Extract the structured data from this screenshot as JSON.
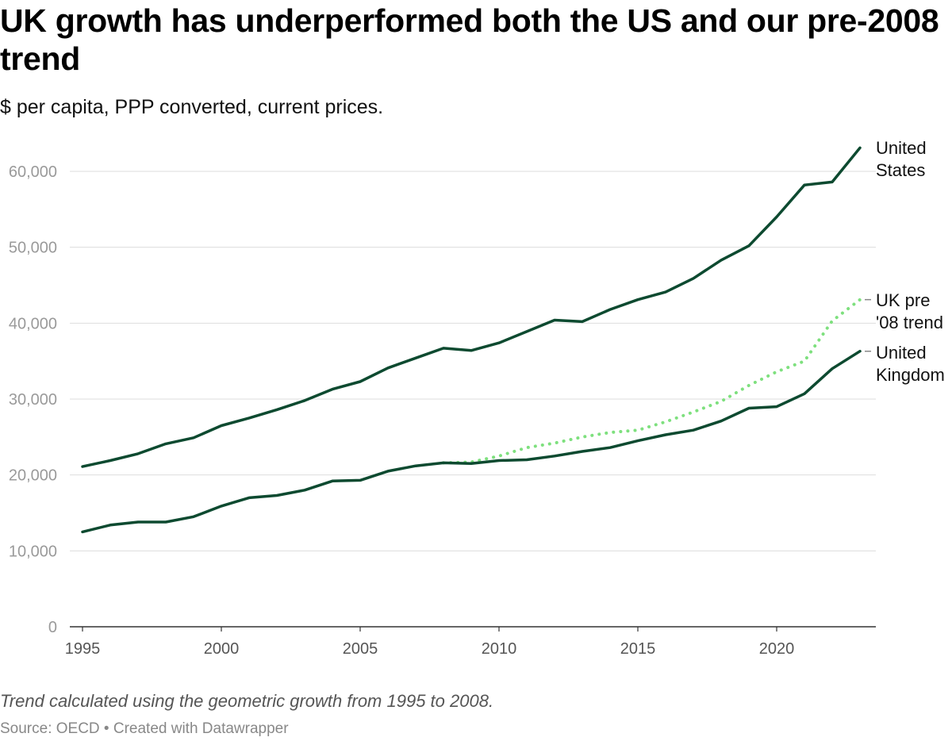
{
  "title": "UK growth has underperformed both the US and our pre-2008 trend",
  "subtitle": "$ per capita, PPP converted, current prices.",
  "note": "Trend calculated using the geometric growth from 1995 to 2008.",
  "source": "Source: OECD • Created with Datawrapper",
  "colors": {
    "us": "#0d4a30",
    "uk": "#0d4a30",
    "trend": "#7ee07e",
    "grid": "#dddddd",
    "axis": "#333333"
  },
  "chart_data": {
    "type": "line",
    "title": "UK growth has underperformed both the US and our pre-2008 trend",
    "xlabel": "",
    "ylabel": "$ per capita, PPP converted, current prices.",
    "xlim": [
      1995,
      2023
    ],
    "ylim": [
      0,
      63000
    ],
    "yticks": [
      0,
      10000,
      20000,
      30000,
      40000,
      50000,
      60000
    ],
    "ytick_labels": [
      "0",
      "10,000",
      "20,000",
      "30,000",
      "40,000",
      "50,000",
      "60,000"
    ],
    "xticks": [
      1995,
      2000,
      2005,
      2010,
      2015,
      2020
    ],
    "xtick_labels": [
      "1995",
      "2000",
      "2005",
      "2010",
      "2015",
      "2020"
    ],
    "series": [
      {
        "name": "United States",
        "label_lines": [
          "United",
          "States"
        ],
        "style": "solid",
        "x": [
          1995,
          1996,
          1997,
          1998,
          1999,
          2000,
          2001,
          2002,
          2003,
          2004,
          2005,
          2006,
          2007,
          2008,
          2009,
          2010,
          2011,
          2012,
          2013,
          2014,
          2015,
          2016,
          2017,
          2018,
          2019,
          2020,
          2021,
          2022,
          2023
        ],
        "values": [
          21100,
          21900,
          22800,
          24100,
          24900,
          26500,
          27500,
          28600,
          29800,
          31300,
          32300,
          34100,
          35400,
          36700,
          36400,
          37400,
          38900,
          40400,
          40200,
          41800,
          43100,
          44100,
          45900,
          48300,
          50200,
          54000,
          58200,
          58600,
          63100
        ]
      },
      {
        "name": "UK pre '08 trend",
        "label_lines": [
          "UK pre",
          "'08 trend"
        ],
        "style": "dotted",
        "x": [
          2008,
          2009,
          2010,
          2011,
          2012,
          2013,
          2014,
          2015,
          2016,
          2017,
          2018,
          2019,
          2020,
          2021,
          2022,
          2023
        ],
        "values": [
          21600,
          21700,
          22500,
          23600,
          24200,
          25000,
          25600,
          25900,
          27000,
          28300,
          29700,
          31800,
          33600,
          35000,
          40300,
          43100
        ]
      },
      {
        "name": "United Kingdom",
        "label_lines": [
          "United",
          "Kingdom"
        ],
        "style": "solid",
        "x": [
          1995,
          1996,
          1997,
          1998,
          1999,
          2000,
          2001,
          2002,
          2003,
          2004,
          2005,
          2006,
          2007,
          2008,
          2009,
          2010,
          2011,
          2012,
          2013,
          2014,
          2015,
          2016,
          2017,
          2018,
          2019,
          2020,
          2021,
          2022,
          2023
        ],
        "values": [
          12500,
          13400,
          13800,
          13800,
          14500,
          15900,
          17000,
          17300,
          18000,
          19200,
          19300,
          20500,
          21200,
          21600,
          21500,
          21900,
          22000,
          22500,
          23100,
          23600,
          24500,
          25300,
          25900,
          27100,
          28800,
          29000,
          30700,
          34000,
          36300
        ]
      }
    ]
  }
}
